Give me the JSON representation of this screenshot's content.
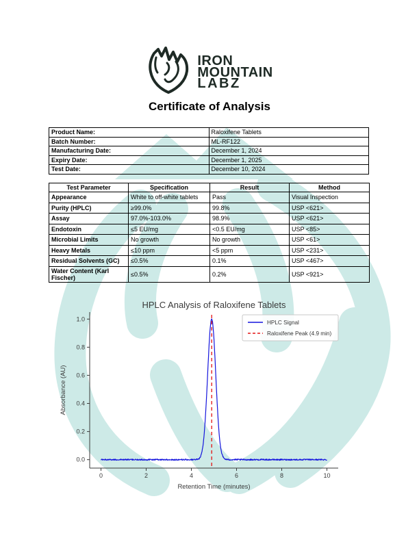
{
  "brand": {
    "name_lines": [
      "IRON",
      "MOUNTAIN",
      "LABZ"
    ],
    "logo_icon": "shield-mountain-fist-logo"
  },
  "document": {
    "title": "Certificate of Analysis"
  },
  "product_info": {
    "rows": [
      {
        "label": "Product Name:",
        "value": "Raloxifene Tablets"
      },
      {
        "label": "Batch Number:",
        "value": "ML-RF122"
      },
      {
        "label": "Manufacturing Date:",
        "value": "December 1, 2024"
      },
      {
        "label": "Expiry Date:",
        "value": "December 1, 2025"
      },
      {
        "label": "Test Date:",
        "value": "December 10, 2024"
      }
    ]
  },
  "results_table": {
    "headers": [
      "Test Parameter",
      "Specification",
      "Result",
      "Method"
    ],
    "rows": [
      {
        "parameter": "Appearance",
        "specification": "White to off-white tablets",
        "result": "Pass",
        "method": "Visual Inspection"
      },
      {
        "parameter": "Purity (HPLC)",
        "specification": "≥99.0%",
        "result": "99.8%",
        "method": "USP <621>"
      },
      {
        "parameter": "Assay",
        "specification": "97.0%-103.0%",
        "result": "98.9%",
        "method": "USP <621>"
      },
      {
        "parameter": "Endotoxin",
        "specification": "≤5 EU/mg",
        "result": "<0.5 EU/mg",
        "method": "USP <85>"
      },
      {
        "parameter": "Microbial Limits",
        "specification": "No growth",
        "result": "No growth",
        "method": "USP <61>"
      },
      {
        "parameter": "Heavy Metals",
        "specification": "≤10 ppm",
        "result": "<5 ppm",
        "method": "USP <231>"
      },
      {
        "parameter": "Residual Solvents (GC)",
        "specification": "≤0.5%",
        "result": "0.1%",
        "method": "USP <467>"
      },
      {
        "parameter": "Water Content (Karl Fischer)",
        "specification": "≤0.5%",
        "result": "0.2%",
        "method": "USP <921>"
      }
    ]
  },
  "chart_data": {
    "type": "line",
    "title": "HPLC Analysis of Raloxifene Tablets",
    "xlabel": "Retention Time (minutes)",
    "ylabel": "Absorbance (AU)",
    "xlim": [
      -0.5,
      10.5
    ],
    "ylim": [
      -0.06,
      1.05
    ],
    "x_ticks": [
      0,
      2,
      4,
      6,
      8,
      10
    ],
    "y_ticks": [
      0.0,
      0.2,
      0.4,
      0.6,
      0.8,
      1.0
    ],
    "legend_position": "upper right",
    "grid": false,
    "series": [
      {
        "name": "HPLC Signal",
        "color": "#1414dd",
        "style": "solid",
        "model": "gaussian_with_noise",
        "x_range": [
          0,
          10
        ],
        "n_points": 700,
        "peak_center": 4.9,
        "peak_height": 1.0,
        "peak_sigma": 0.18,
        "noise_amplitude": 0.0045
      },
      {
        "name": "Raloxifene Peak (4.9 min)",
        "color": "#e31212",
        "style": "dashed",
        "model": "vline",
        "x": 4.9
      }
    ],
    "peak_retention_time_min": 4.9
  },
  "colors": {
    "watermark": "#cdeae7",
    "logo_ink": "#1e2a25",
    "axis_ink": "#3a3a3a"
  }
}
